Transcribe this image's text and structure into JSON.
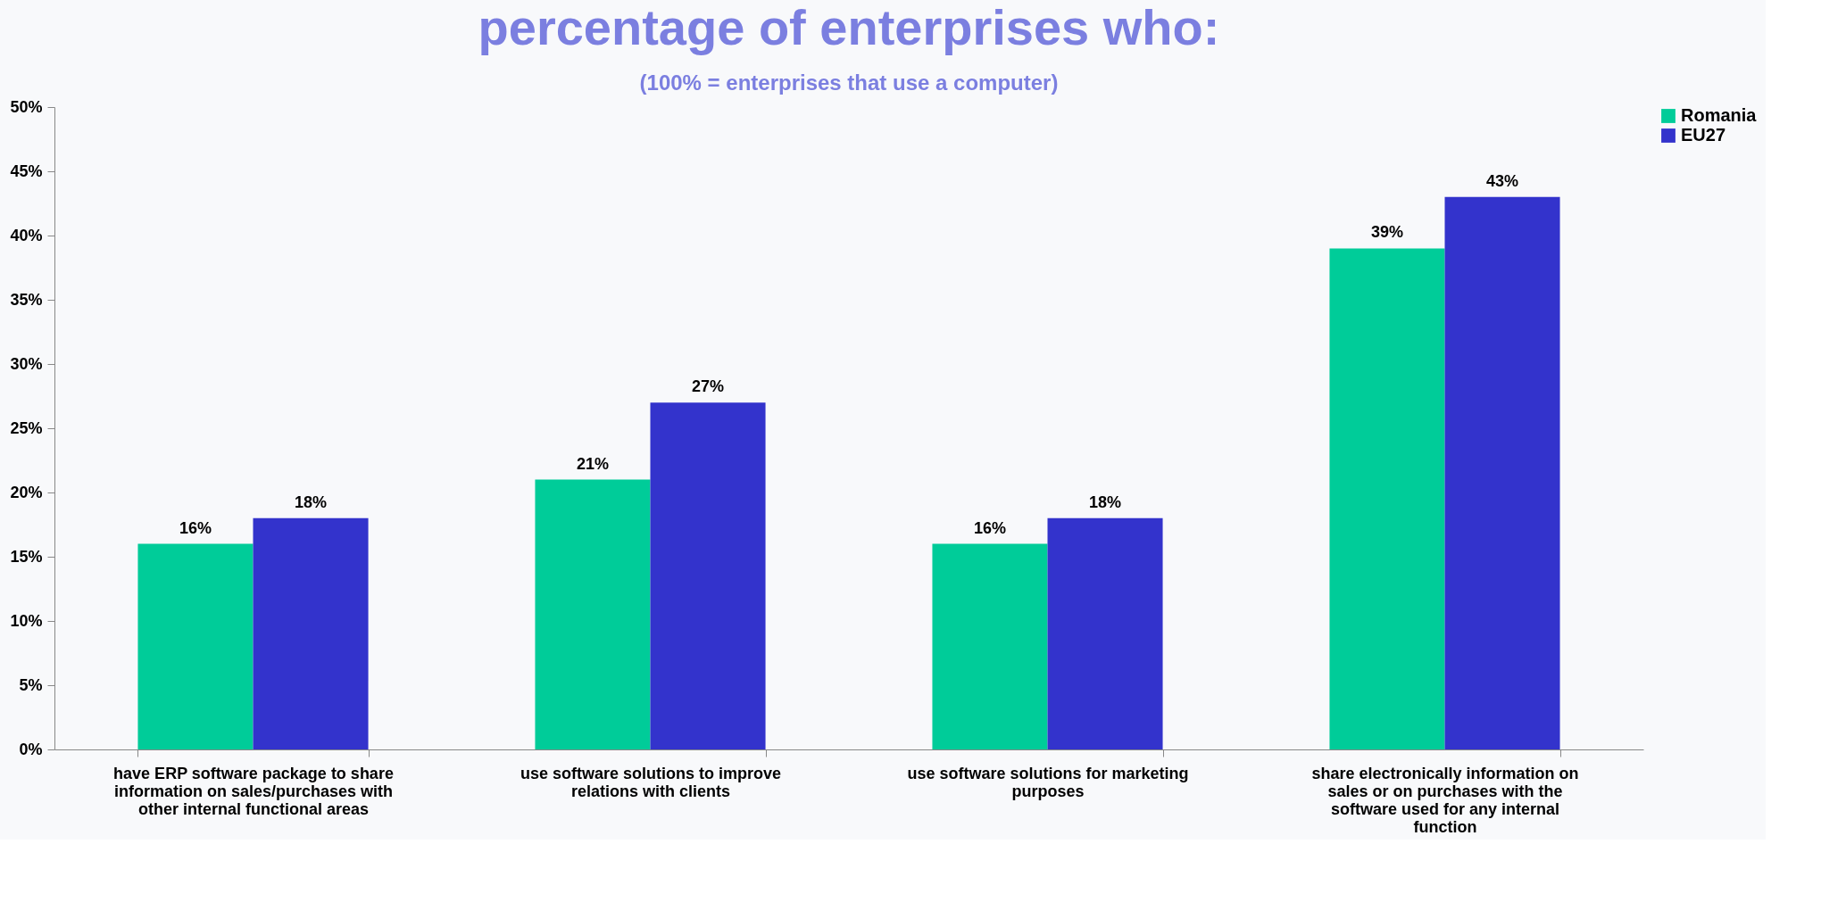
{
  "chart_data": {
    "type": "bar",
    "title": "percentage of enterprises who:",
    "subtitle": "(100% = enterprises that use a computer)",
    "categories": [
      "have ERP software package to share information on sales/purchases with other internal functional areas",
      "use software solutions to improve relations with clients",
      "use software solutions for marketing purposes",
      "share electronically information on sales or on purchases with the software used for any internal function"
    ],
    "series": [
      {
        "name": "Romania",
        "color": "#00cc99",
        "values": [
          16,
          21,
          16,
          39
        ],
        "value_labels": [
          "16%",
          "21%",
          "16%",
          "39%"
        ]
      },
      {
        "name": "EU27",
        "color": "#3333cc",
        "values": [
          18,
          27,
          18,
          43
        ],
        "value_labels": [
          "18%",
          "27%",
          "18%",
          "43%"
        ]
      }
    ],
    "ylim": [
      0,
      50
    ],
    "yticks": [
      {
        "value": 0,
        "label": "0%"
      },
      {
        "value": 5,
        "label": "5%"
      },
      {
        "value": 10,
        "label": "10%"
      },
      {
        "value": 15,
        "label": "15%"
      },
      {
        "value": 20,
        "label": "20%"
      },
      {
        "value": 25,
        "label": "25%"
      },
      {
        "value": 30,
        "label": "30%"
      },
      {
        "value": 35,
        "label": "35%"
      },
      {
        "value": 40,
        "label": "40%"
      },
      {
        "value": 45,
        "label": "45%"
      },
      {
        "value": 50,
        "label": "50%"
      }
    ],
    "grid": false,
    "legend": "right"
  }
}
